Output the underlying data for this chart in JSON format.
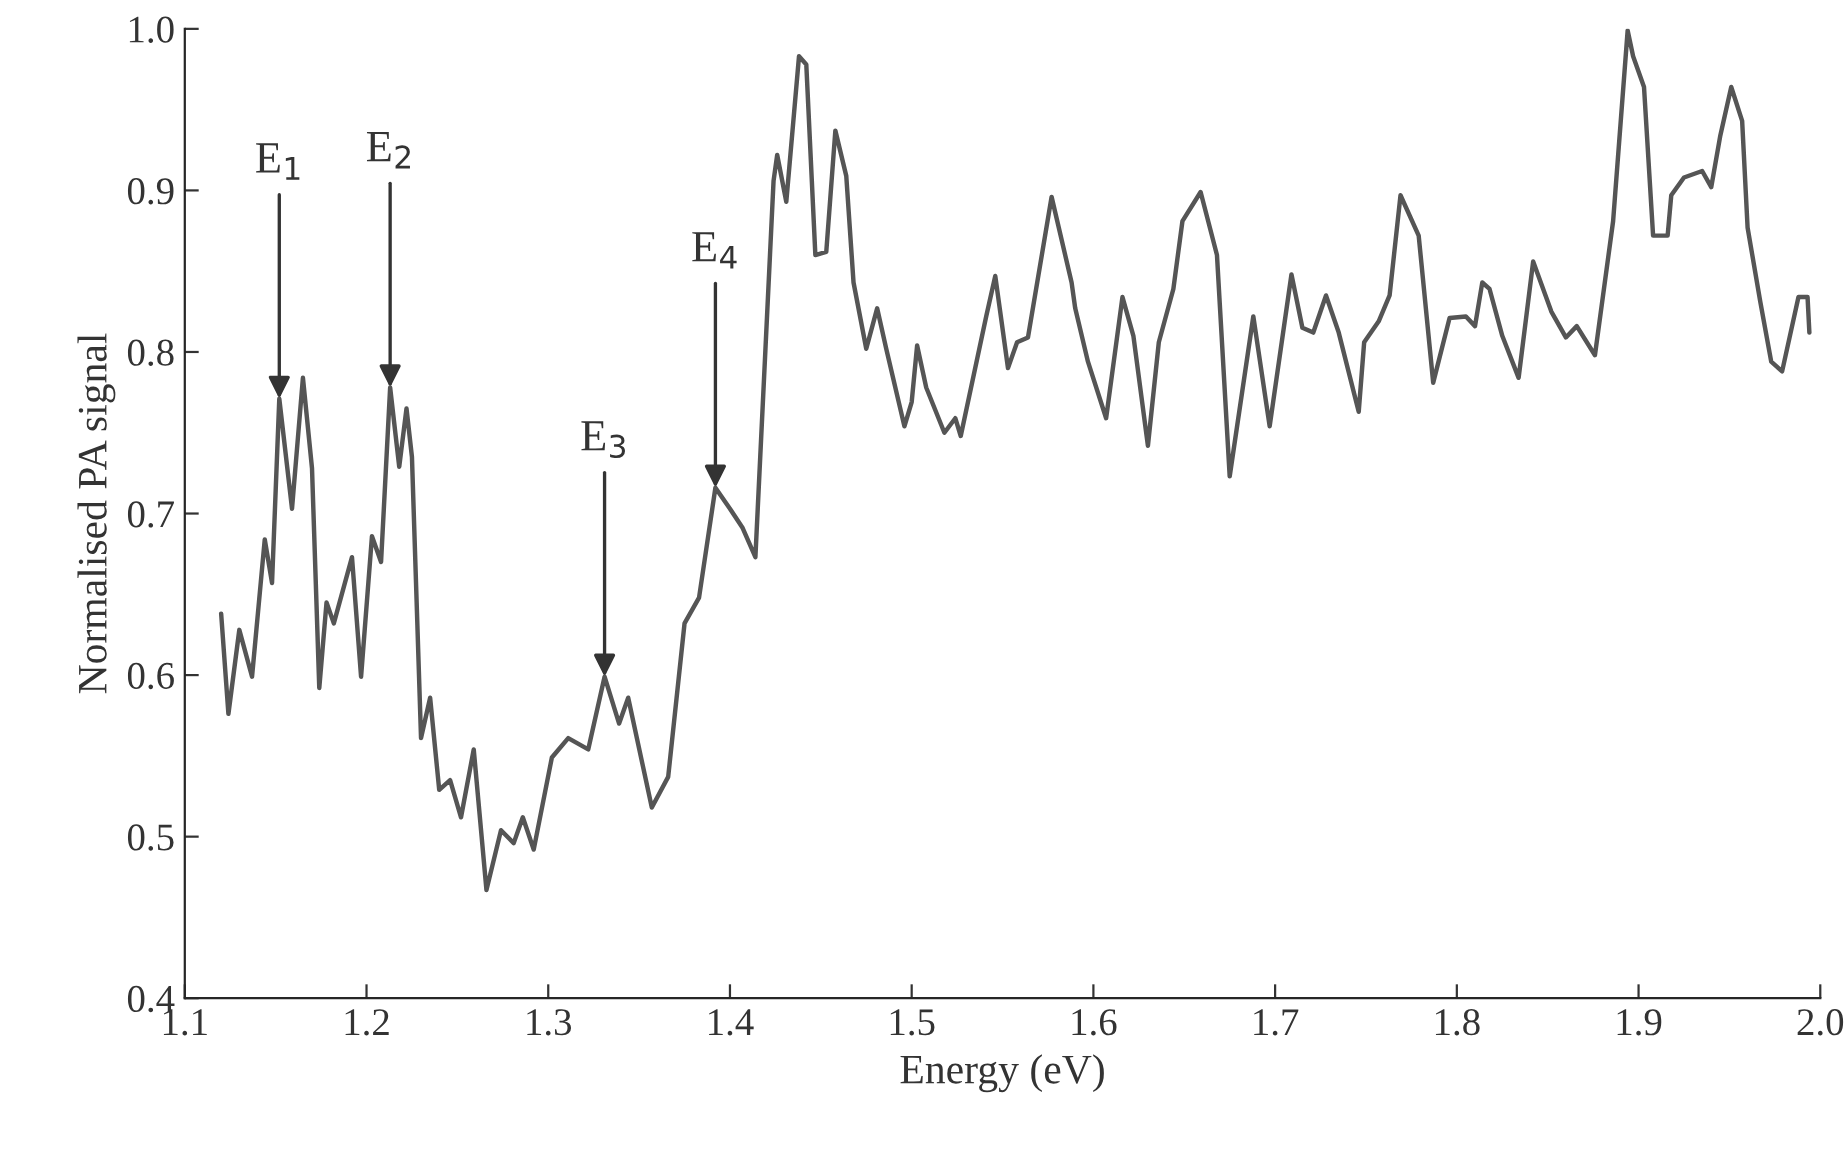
{
  "chart_data": {
    "type": "line",
    "xlabel": "Energy (eV)",
    "ylabel": "Normalised PA signal",
    "xlim": [
      1.1,
      2.0
    ],
    "ylim": [
      0.4,
      1.0
    ],
    "xticks": [
      1.1,
      1.2,
      1.3,
      1.4,
      1.5,
      1.6,
      1.7,
      1.8,
      1.9,
      {
        "value": 2.0,
        "label": "2.0"
      }
    ],
    "yticks": [
      0.4,
      0.5,
      0.6,
      0.7,
      0.8,
      0.9,
      {
        "value": 1.0,
        "label": "1.0"
      }
    ],
    "grid": false,
    "legend": false,
    "series": [
      {
        "color": "#555555",
        "x": [
          1.12,
          1.124,
          1.13,
          1.137,
          1.144,
          1.148,
          1.152,
          1.159,
          1.165,
          1.17,
          1.174,
          1.178,
          1.182,
          1.192,
          1.197,
          1.203,
          1.208,
          1.213,
          1.218,
          1.222,
          1.225,
          1.23,
          1.235,
          1.24,
          1.246,
          1.252,
          1.259,
          1.266,
          1.274,
          1.281,
          1.286,
          1.292,
          1.302,
          1.311,
          1.322,
          1.331,
          1.339,
          1.344,
          1.357,
          1.366,
          1.375,
          1.383,
          1.392,
          1.4,
          1.407,
          1.414,
          1.424,
          1.426,
          1.431,
          1.438,
          1.442,
          1.447,
          1.453,
          1.458,
          1.464,
          1.468,
          1.475,
          1.481,
          1.486,
          1.496,
          1.5,
          1.503,
          1.508,
          1.518,
          1.524,
          1.527,
          1.541,
          1.546,
          1.553,
          1.558,
          1.564,
          1.577,
          1.588,
          1.59,
          1.597,
          1.607,
          1.616,
          1.622,
          1.63,
          1.636,
          1.644,
          1.649,
          1.659,
          1.668,
          1.675,
          1.688,
          1.697,
          1.709,
          1.715,
          1.721,
          1.728,
          1.735,
          1.746,
          1.749,
          1.757,
          1.763,
          1.769,
          1.779,
          1.787,
          1.796,
          1.805,
          1.81,
          1.814,
          1.818,
          1.825,
          1.834,
          1.842,
          1.852,
          1.86,
          1.866,
          1.876,
          1.886,
          1.894,
          1.897,
          1.903,
          1.908,
          1.916,
          1.918,
          1.925,
          1.935,
          1.94,
          1.945,
          1.951,
          1.957,
          1.96,
          1.967,
          1.973,
          1.979,
          1.988,
          1.993,
          1.994
        ],
        "values": [
          0.638,
          0.576,
          0.628,
          0.599,
          0.684,
          0.657,
          0.771,
          0.703,
          0.784,
          0.728,
          0.592,
          0.645,
          0.632,
          0.673,
          0.599,
          0.686,
          0.67,
          0.778,
          0.729,
          0.765,
          0.735,
          0.561,
          0.586,
          0.529,
          0.535,
          0.512,
          0.554,
          0.467,
          0.504,
          0.496,
          0.512,
          0.492,
          0.549,
          0.561,
          0.554,
          0.599,
          0.57,
          0.586,
          0.518,
          0.537,
          0.632,
          0.648,
          0.716,
          0.703,
          0.691,
          0.673,
          0.906,
          0.922,
          0.893,
          0.983,
          0.978,
          0.86,
          0.862,
          0.937,
          0.909,
          0.843,
          0.802,
          0.827,
          0.802,
          0.754,
          0.769,
          0.804,
          0.778,
          0.75,
          0.759,
          0.748,
          0.822,
          0.847,
          0.79,
          0.806,
          0.809,
          0.896,
          0.843,
          0.827,
          0.794,
          0.759,
          0.834,
          0.81,
          0.742,
          0.806,
          0.839,
          0.881,
          0.899,
          0.86,
          0.723,
          0.822,
          0.754,
          0.848,
          0.815,
          0.812,
          0.835,
          0.812,
          0.763,
          0.806,
          0.819,
          0.835,
          0.897,
          0.872,
          0.781,
          0.821,
          0.822,
          0.816,
          0.843,
          0.839,
          0.81,
          0.784,
          0.856,
          0.825,
          0.809,
          0.816,
          0.798,
          0.881,
          0.999,
          0.983,
          0.964,
          0.872,
          0.872,
          0.897,
          0.908,
          0.912,
          0.902,
          0.934,
          0.964,
          0.943,
          0.877,
          0.831,
          0.794,
          0.788,
          0.834,
          0.834,
          0.812
        ]
      }
    ],
    "annotations": [
      {
        "text": "E$_{1}$",
        "x": 1.152,
        "y": 0.771
      },
      {
        "text": "E$_{2}$",
        "x": 1.213,
        "y": 0.778
      },
      {
        "text": "E$_{3}$",
        "x": 1.331,
        "y": 0.599
      },
      {
        "text": "E$_{4}$",
        "x": 1.392,
        "y": 0.716
      }
    ]
  }
}
